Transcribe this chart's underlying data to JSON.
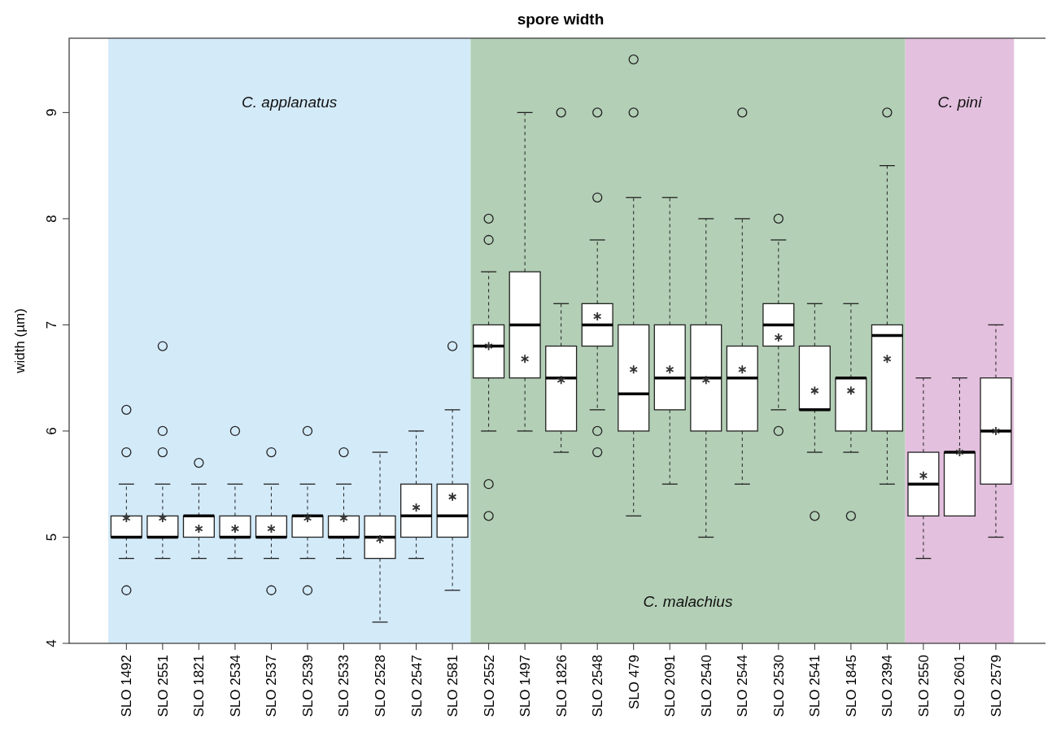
{
  "chart_data": {
    "type": "box",
    "title": "spore width",
    "ylabel": "width (µm)",
    "categories": [
      "SLO 1492",
      "SLO 2551",
      "SLO 1821",
      "SLO 2534",
      "SLO 2537",
      "SLO 2539",
      "SLO 2533",
      "SLO 2528",
      "SLO 2547",
      "SLO 2581",
      "SLO 2552",
      "SLO 1497",
      "SLO 1826",
      "SLO 2548",
      "SLO 479",
      "SLO 2091",
      "SLO 2540",
      "SLO 2544",
      "SLO 2530",
      "SLO 2541",
      "SLO 1845",
      "SLO 2394",
      "SLO 2550",
      "SLO 2601",
      "SLO 2579"
    ],
    "boxes": [
      {
        "low": 4.8,
        "q1": 5.0,
        "median": 5.0,
        "q3": 5.2,
        "high": 5.5,
        "mean": 5.18,
        "outliers": [
          6.2,
          5.8,
          4.5
        ]
      },
      {
        "low": 4.8,
        "q1": 5.0,
        "median": 5.0,
        "q3": 5.2,
        "high": 5.5,
        "mean": 5.18,
        "outliers": [
          6.8,
          6.0,
          5.8
        ]
      },
      {
        "low": 4.8,
        "q1": 5.0,
        "median": 5.2,
        "q3": 5.2,
        "high": 5.5,
        "mean": 5.08,
        "outliers": [
          5.7
        ]
      },
      {
        "low": 4.8,
        "q1": 5.0,
        "median": 5.0,
        "q3": 5.2,
        "high": 5.5,
        "mean": 5.08,
        "outliers": [
          6.0
        ]
      },
      {
        "low": 4.8,
        "q1": 5.0,
        "median": 5.0,
        "q3": 5.2,
        "high": 5.5,
        "mean": 5.08,
        "outliers": [
          5.8,
          4.5
        ]
      },
      {
        "low": 4.8,
        "q1": 5.0,
        "median": 5.2,
        "q3": 5.2,
        "high": 5.5,
        "mean": 5.18,
        "outliers": [
          6.0,
          4.5
        ]
      },
      {
        "low": 4.8,
        "q1": 5.0,
        "median": 5.0,
        "q3": 5.2,
        "high": 5.5,
        "mean": 5.18,
        "outliers": [
          5.8
        ]
      },
      {
        "low": 4.2,
        "q1": 4.8,
        "median": 5.0,
        "q3": 5.2,
        "high": 5.8,
        "mean": 4.98
      },
      {
        "low": 4.8,
        "q1": 5.0,
        "median": 5.2,
        "q3": 5.5,
        "high": 6.0,
        "mean": 5.28
      },
      {
        "low": 4.5,
        "q1": 5.0,
        "median": 5.2,
        "q3": 5.5,
        "high": 6.2,
        "mean": 5.38,
        "outliers": [
          6.8
        ]
      },
      {
        "low": 6.0,
        "q1": 6.5,
        "median": 6.8,
        "q3": 7.0,
        "high": 7.5,
        "mean": 6.8,
        "outliers": [
          8.0,
          7.8,
          5.5,
          5.2
        ]
      },
      {
        "low": 6.0,
        "q1": 6.5,
        "median": 7.0,
        "q3": 7.5,
        "high": 9.0,
        "mean": 6.68
      },
      {
        "low": 5.8,
        "q1": 6.0,
        "median": 6.5,
        "q3": 6.8,
        "high": 7.2,
        "mean": 6.48,
        "outliers": [
          9.0
        ]
      },
      {
        "low": 6.2,
        "q1": 6.8,
        "median": 7.0,
        "q3": 7.2,
        "high": 7.8,
        "mean": 7.08,
        "outliers": [
          9.0,
          8.2,
          6.0,
          5.8
        ]
      },
      {
        "low": 5.2,
        "q1": 6.0,
        "median": 6.35,
        "q3": 7.0,
        "high": 8.2,
        "mean": 6.58,
        "outliers": [
          9.5,
          9.0
        ]
      },
      {
        "low": 5.5,
        "q1": 6.2,
        "median": 6.5,
        "q3": 7.0,
        "high": 8.2,
        "mean": 6.58
      },
      {
        "low": 5.0,
        "q1": 6.0,
        "median": 6.5,
        "q3": 7.0,
        "high": 8.0,
        "mean": 6.48
      },
      {
        "low": 5.5,
        "q1": 6.0,
        "median": 6.5,
        "q3": 6.8,
        "high": 8.0,
        "mean": 6.58,
        "outliers": [
          9.0
        ]
      },
      {
        "low": 6.2,
        "q1": 6.8,
        "median": 7.0,
        "q3": 7.2,
        "high": 7.8,
        "mean": 6.88,
        "outliers": [
          8.0,
          6.0
        ]
      },
      {
        "low": 5.8,
        "q1": 6.2,
        "median": 6.2,
        "q3": 6.8,
        "high": 7.2,
        "mean": 6.38,
        "outliers": [
          5.2
        ]
      },
      {
        "low": 5.8,
        "q1": 6.0,
        "median": 6.5,
        "q3": 6.5,
        "high": 7.2,
        "mean": 6.38,
        "outliers": [
          5.2
        ]
      },
      {
        "low": 5.5,
        "q1": 6.0,
        "median": 6.9,
        "q3": 7.0,
        "high": 8.5,
        "mean": 6.68,
        "outliers": [
          9.0
        ]
      },
      {
        "low": 4.8,
        "q1": 5.2,
        "median": 5.5,
        "q3": 5.8,
        "high": 6.5,
        "mean": 5.58
      },
      {
        "low": 5.2,
        "q1": 5.2,
        "median": 5.8,
        "q3": 5.8,
        "high": 6.5,
        "mean": 5.8
      },
      {
        "low": 5.0,
        "q1": 5.5,
        "median": 6.0,
        "q3": 6.5,
        "high": 7.0,
        "mean": 6.0
      }
    ],
    "ylim": [
      4,
      9.7
    ],
    "yticks": [
      4,
      5,
      6,
      7,
      8,
      9
    ],
    "bands": [
      {
        "axis": "x",
        "from": "SLO 1492",
        "to": "SLO 2581",
        "label": "C. applanatus",
        "color": "#d3eaf9"
      },
      {
        "axis": "x",
        "from": "SLO 2552",
        "to": "SLO 2394",
        "label": "C. malachius",
        "color": "#b3cfb6"
      },
      {
        "axis": "x",
        "from": "SLO 2550",
        "to": "SLO 2579",
        "label": "C. pini",
        "color": "#e3c0de"
      }
    ]
  }
}
